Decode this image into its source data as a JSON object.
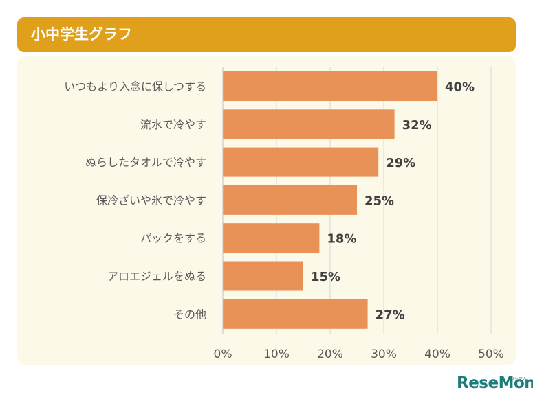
{
  "header": {
    "title": "小中学生グラフ"
  },
  "chart_data": {
    "type": "bar",
    "orientation": "horizontal",
    "categories": [
      "いつもより入念に保しつする",
      "流水で冷やす",
      "ぬらしたタオルで冷やす",
      "保冷ざいや氷で冷やす",
      "パックをする",
      "アロエジェルをぬる",
      "その他"
    ],
    "values": [
      40,
      32,
      29,
      25,
      18,
      15,
      27
    ],
    "value_labels": [
      "40%",
      "32%",
      "29%",
      "25%",
      "18%",
      "15%",
      "27%"
    ],
    "xlim": [
      0,
      50
    ],
    "ticks": [
      0,
      10,
      20,
      30,
      40,
      50
    ],
    "tick_labels": [
      "0%",
      "10%",
      "20%",
      "30%",
      "40%",
      "50%"
    ],
    "grid": "vertical",
    "bar_color": "#E89258"
  },
  "logo": {
    "text": "ReseMom",
    "small_text": "リセマム"
  }
}
